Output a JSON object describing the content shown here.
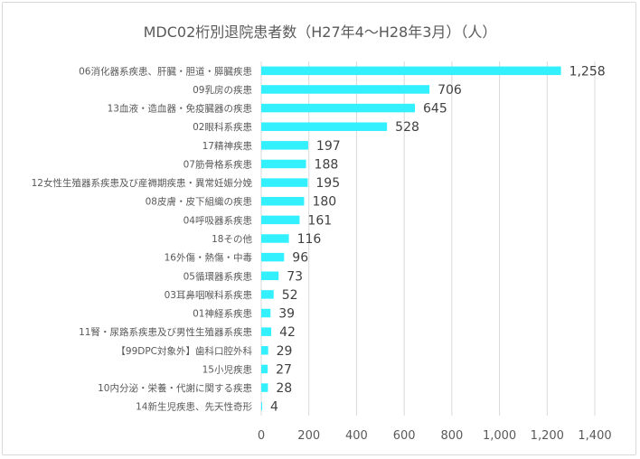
{
  "chart_data": {
    "type": "bar",
    "orientation": "horizontal",
    "title": "MDC02桁別退院患者数（H27年4～H28年3月）（人）",
    "xlabel": "",
    "ylabel": "",
    "xlim": [
      0,
      1400
    ],
    "xticks": [
      0,
      200,
      400,
      600,
      800,
      1000,
      1200,
      1400
    ],
    "xtick_labels": [
      "0",
      "200",
      "400",
      "600",
      "800",
      "1,000",
      "1,200",
      "1,400"
    ],
    "grid": true,
    "legend": "none",
    "bar_color": "#33f0ff",
    "categories": [
      "06消化器系疾患、肝臓・胆道・膵臓疾患",
      "09乳房の疾患",
      "13血液・造血器・免疫臓器の疾患",
      "02眼科系疾患",
      "17精神疾患",
      "07筋骨格系疾患",
      "12女性生殖器系疾患及び産褥期疾患・異常妊娠分娩",
      "08皮膚・皮下組織の疾患",
      "04呼吸器系疾患",
      "18その他",
      "16外傷・熱傷・中毒",
      "05循環器系疾患",
      "03耳鼻咽喉科系疾患",
      "01神経系疾患",
      "11腎・尿路系疾患及び男性生殖器系疾患",
      "【99DPC対象外】歯科口腔外科",
      "15小児疾患",
      "10内分泌・栄養・代謝に関する疾患",
      "14新生児疾患、先天性奇形"
    ],
    "values": [
      1258,
      706,
      645,
      528,
      197,
      188,
      195,
      180,
      161,
      116,
      96,
      73,
      52,
      39,
      42,
      29,
      27,
      28,
      4
    ],
    "value_labels": [
      "1,258",
      "706",
      "645",
      "528",
      "197",
      "188",
      "195",
      "180",
      "161",
      "116",
      "96",
      "73",
      "52",
      "39",
      "42",
      "29",
      "27",
      "28",
      "4"
    ]
  }
}
